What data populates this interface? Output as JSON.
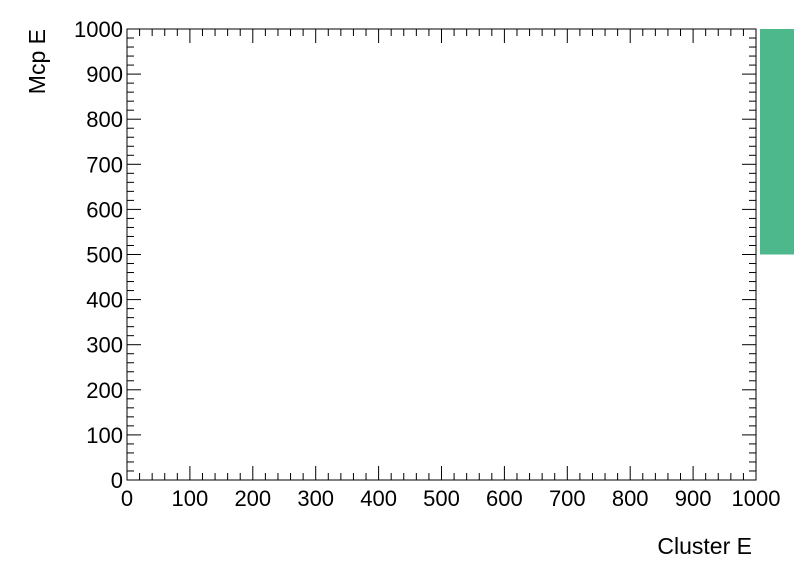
{
  "chart_data": {
    "type": "heatmap",
    "xlabel": "Cluster E",
    "ylabel": "Mcp E",
    "xlim": [
      0,
      1000
    ],
    "ylim": [
      0,
      1000
    ],
    "x_ticks": [
      "0",
      "100",
      "200",
      "300",
      "400",
      "500",
      "600",
      "700",
      "800",
      "900",
      "1000"
    ],
    "y_ticks": [
      "0",
      "100",
      "200",
      "300",
      "400",
      "500",
      "600",
      "700",
      "800",
      "900",
      "1000"
    ],
    "palette_box_color": "#4db88c",
    "palette_range": [
      500,
      1000
    ],
    "grid": false,
    "cells": []
  }
}
